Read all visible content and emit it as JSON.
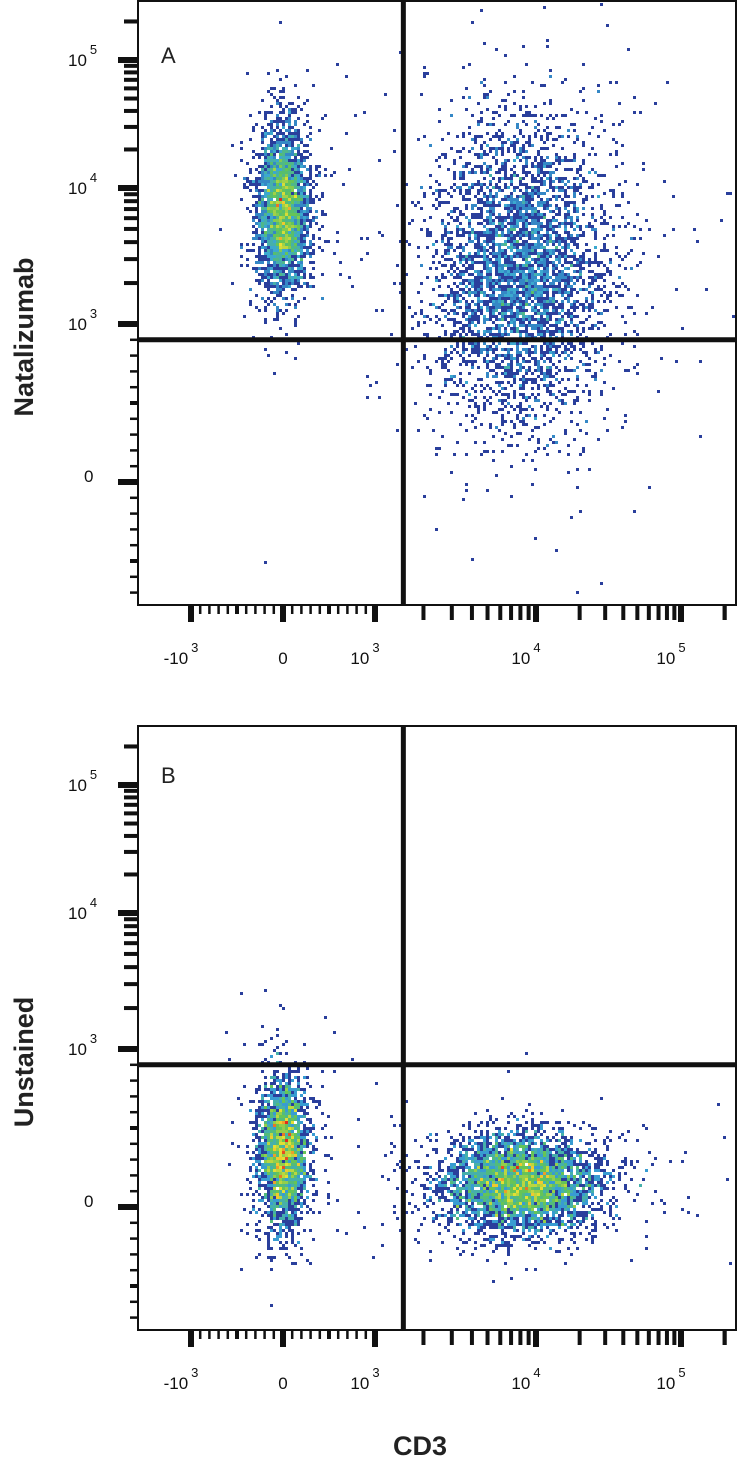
{
  "chart_data": [
    {
      "type": "scatter",
      "subtype": "flow-cytometry-density-dot-plot",
      "panel_label": "A",
      "ylabel": "Natalizumab",
      "xlabel": "",
      "x_scale": "biexponential",
      "y_scale": "biexponential",
      "xlim": [
        -1800,
        262144
      ],
      "ylim": [
        -2500,
        262144
      ],
      "x_ticks": [
        {
          "value": -1000,
          "base": "-10",
          "exp": "3"
        },
        {
          "value": 0,
          "base": "0",
          "exp": ""
        },
        {
          "value": 1000,
          "base": "10",
          "exp": "3"
        },
        {
          "value": 10000,
          "base": "10",
          "exp": "4"
        },
        {
          "value": 100000,
          "base": "10",
          "exp": "5"
        }
      ],
      "y_ticks": [
        {
          "value": 0,
          "base": "0",
          "exp": ""
        },
        {
          "value": 1000,
          "base": "10",
          "exp": "3"
        },
        {
          "value": 10000,
          "base": "10",
          "exp": "4"
        },
        {
          "value": 100000,
          "base": "10",
          "exp": "5"
        }
      ],
      "quadrant_gate": {
        "x": 1500,
        "y": 900
      },
      "populations": [
        {
          "name": "",
          "x_center": 0,
          "y_center": 7000,
          "x_spread_decades": 0.08,
          "y_spread_decades": 0.3,
          "events": 3200
        },
        {
          "name": "",
          "x_center": 8000,
          "y_center": 2500,
          "x_spread_decades": 0.28,
          "y_spread_decades": 0.55,
          "events": 4200
        }
      ],
      "density_colors": [
        "#2a3f9c",
        "#3aa6d8",
        "#5cc25a",
        "#f2e230",
        "#e32a1e"
      ]
    },
    {
      "type": "scatter",
      "subtype": "flow-cytometry-density-dot-plot",
      "panel_label": "B",
      "ylabel": "Unstained",
      "xlabel": "CD3",
      "x_scale": "biexponential",
      "y_scale": "biexponential",
      "xlim": [
        -1800,
        262144
      ],
      "ylim": [
        -2500,
        262144
      ],
      "x_ticks": [
        {
          "value": -1000,
          "base": "-10",
          "exp": "3"
        },
        {
          "value": 0,
          "base": "0",
          "exp": ""
        },
        {
          "value": 1000,
          "base": "10",
          "exp": "3"
        },
        {
          "value": 10000,
          "base": "10",
          "exp": "4"
        },
        {
          "value": 100000,
          "base": "10",
          "exp": "5"
        }
      ],
      "y_ticks": [
        {
          "value": 0,
          "base": "0",
          "exp": ""
        },
        {
          "value": 1000,
          "base": "10",
          "exp": "3"
        },
        {
          "value": 10000,
          "base": "10",
          "exp": "4"
        },
        {
          "value": 100000,
          "base": "10",
          "exp": "5"
        }
      ],
      "quadrant_gate": {
        "x": 1500,
        "y": 900
      },
      "populations": [
        {
          "name": "",
          "x_center": 0,
          "y_center": 350,
          "x_spread_decades": 0.08,
          "y_spread_decades": 0.28,
          "events": 2600
        },
        {
          "name": "",
          "x_center": 8000,
          "y_center": 150,
          "x_spread_decades": 0.25,
          "y_spread_decades": 0.18,
          "events": 4200
        }
      ],
      "density_colors": [
        "#2a3f9c",
        "#3aa6d8",
        "#5cc25a",
        "#f2e230",
        "#e32a1e"
      ]
    }
  ]
}
